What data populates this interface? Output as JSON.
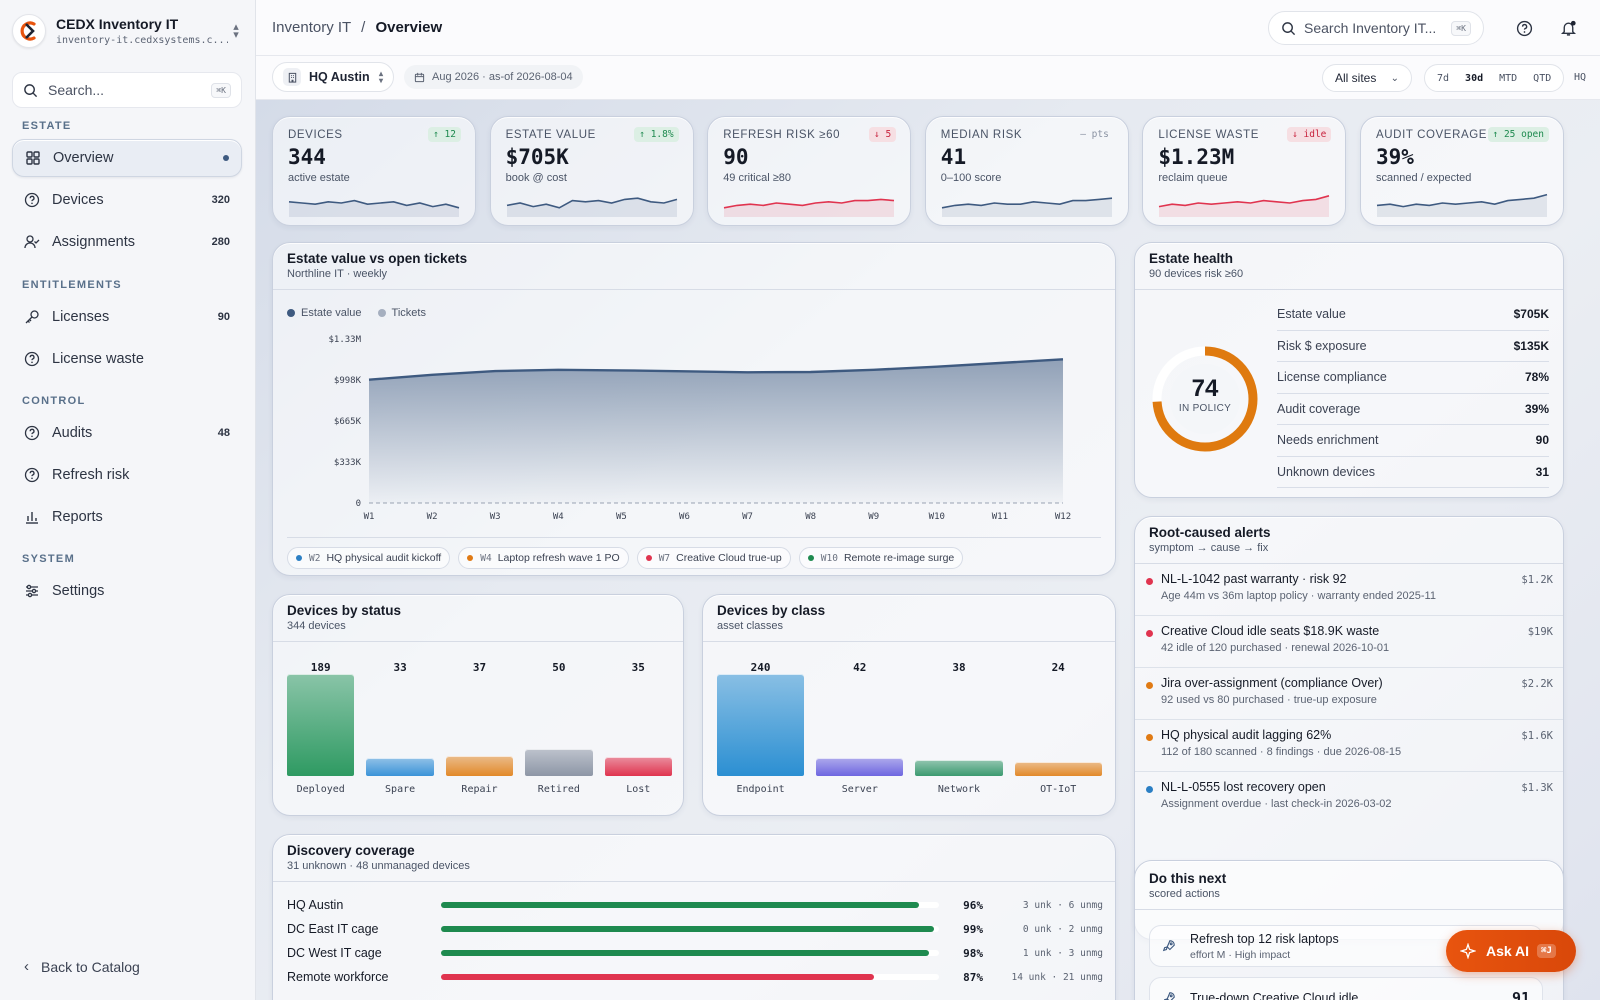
{
  "app": {
    "name": "CEDX Inventory IT",
    "host": "inventory-it.cedxsystems.c..."
  },
  "sidebar": {
    "search_placeholder": "Search...",
    "search_kbd": "⌘K",
    "sections": {
      "estate": "ESTATE",
      "entitlements": "ENTITLEMENTS",
      "control": "CONTROL",
      "system": "SYSTEM"
    },
    "items": [
      {
        "label": "Overview",
        "count": ""
      },
      {
        "label": "Devices",
        "count": "320"
      },
      {
        "label": "Assignments",
        "count": "280"
      },
      {
        "label": "Licenses",
        "count": "90"
      },
      {
        "label": "License waste",
        "count": ""
      },
      {
        "label": "Audits",
        "count": "48"
      },
      {
        "label": "Refresh risk",
        "count": ""
      },
      {
        "label": "Reports",
        "count": ""
      },
      {
        "label": "Settings",
        "count": ""
      }
    ],
    "back": "Back to Catalog"
  },
  "topbar": {
    "crumb_root": "Inventory IT",
    "crumb_sep": "/",
    "crumb_current": "Overview",
    "search_placeholder": "Search Inventory IT...",
    "search_kbd": "⌘K"
  },
  "filters": {
    "site": "HQ Austin",
    "date": "Aug 2026 · as-of 2026-08-04",
    "all_sites": "All sites",
    "ranges": [
      "7d",
      "30d",
      "MTD",
      "QTD"
    ],
    "active_range": "30d",
    "hq": "HQ"
  },
  "kpis": [
    {
      "label": "DEVICES",
      "value": "344",
      "sub": "active estate",
      "badge": "↑ 12",
      "trend": "up",
      "color": "#3e5a80"
    },
    {
      "label": "ESTATE VALUE",
      "value": "$705K",
      "sub": "book @ cost",
      "badge": "↑ 1.8%",
      "trend": "up",
      "color": "#3e5a80"
    },
    {
      "label": "REFRESH RISK ≥60",
      "value": "90",
      "sub": "49 critical ≥80",
      "badge": "↓ 5",
      "trend": "down",
      "color": "#e0344f"
    },
    {
      "label": "MEDIAN RISK",
      "value": "41",
      "sub": "0–100 score",
      "badge": "— pts",
      "trend": "flat",
      "color": "#3e5a80"
    },
    {
      "label": "LICENSE WASTE",
      "value": "$1.23M",
      "sub": "reclaim queue",
      "badge": "↓ idle",
      "trend": "down",
      "color": "#e0344f"
    },
    {
      "label": "AUDIT COVERAGE",
      "value": "39%",
      "sub": "scanned / expected",
      "badge": "↑ 25 open",
      "trend": "up",
      "color": "#3e5a80"
    }
  ],
  "estate_chart": {
    "title": "Estate value vs open tickets",
    "subtitle": "Northline IT · weekly",
    "legend": [
      {
        "name": "Estate value",
        "color": "#3e5a80"
      },
      {
        "name": "Tickets",
        "color": "#a5afbf"
      }
    ],
    "annotations": [
      {
        "week": "W2",
        "text": "HQ physical audit kickoff",
        "color": "#2b7fc4"
      },
      {
        "week": "W4",
        "text": "Laptop refresh wave 1 PO",
        "color": "#e07a14"
      },
      {
        "week": "W7",
        "text": "Creative Cloud true-up",
        "color": "#e0344f"
      },
      {
        "week": "W10",
        "text": "Remote re-image surge",
        "color": "#1e8a4f"
      }
    ]
  },
  "chart_data": [
    {
      "type": "area",
      "title": "Estate value vs open tickets",
      "subtitle": "Northline IT · weekly",
      "x": [
        "W1",
        "W2",
        "W3",
        "W4",
        "W5",
        "W6",
        "W7",
        "W8",
        "W9",
        "W10",
        "W11",
        "W12"
      ],
      "series": [
        {
          "name": "Estate value",
          "values": [
            1000,
            1040,
            1070,
            1080,
            1075,
            1068,
            1060,
            1062,
            1080,
            1105,
            1135,
            1165
          ]
        }
      ],
      "y_ticks": [
        "0",
        "$333K",
        "$665K",
        "$998K",
        "$1.33M"
      ],
      "ylim": [
        0,
        1330
      ]
    },
    {
      "type": "bar",
      "title": "Devices by status",
      "subtitle": "344 devices",
      "categories": [
        "Deployed",
        "Spare",
        "Repair",
        "Retired",
        "Lost"
      ],
      "values": [
        189,
        33,
        37,
        50,
        35
      ],
      "colors": [
        "#2e9a62",
        "#3b93d8",
        "#e2892a",
        "#8d96a6",
        "#e0344f"
      ]
    },
    {
      "type": "bar",
      "title": "Devices by class",
      "subtitle": "asset classes",
      "categories": [
        "Endpoint",
        "Server",
        "Network",
        "OT-IoT"
      ],
      "values": [
        240,
        42,
        38,
        24
      ],
      "colors": [
        "#2b8fd2",
        "#6e66e0",
        "#3c9a70",
        "#e2892a"
      ]
    }
  ],
  "health": {
    "title": "Estate health",
    "subtitle": "90 devices risk ≥60",
    "score": "74",
    "score_label": "IN POLICY",
    "score_fraction": 0.74,
    "rows": [
      {
        "label": "Estate value",
        "value": "$705K"
      },
      {
        "label": "Risk $ exposure",
        "value": "$135K"
      },
      {
        "label": "License compliance",
        "value": "78%"
      },
      {
        "label": "Audit coverage",
        "value": "39%"
      },
      {
        "label": "Needs enrichment",
        "value": "90"
      },
      {
        "label": "Unknown devices",
        "value": "31"
      }
    ]
  },
  "alerts": {
    "title": "Root-caused alerts",
    "subtitle": "symptom → cause → fix",
    "items": [
      {
        "title": "NL-L-1042 past warranty · risk 92",
        "sub": "Age 44m vs 36m laptop policy · warranty ended 2025-11",
        "value": "$1.2K",
        "color": "#e0344f"
      },
      {
        "title": "Creative Cloud idle seats $18.9K waste",
        "sub": "42 idle of 120 purchased · renewal 2026-10-01",
        "value": "$19K",
        "color": "#e0344f"
      },
      {
        "title": "Jira over-assignment (compliance Over)",
        "sub": "92 used vs 80 purchased · true-up exposure",
        "value": "$2.2K",
        "color": "#e07a14"
      },
      {
        "title": "HQ physical audit lagging 62%",
        "sub": "112 of 180 scanned · 8 findings · due 2026-08-15",
        "value": "$1.6K",
        "color": "#e07a14"
      },
      {
        "title": "NL-L-0555 lost recovery open",
        "sub": "Assignment overdue · last check-in 2026-03-02",
        "value": "$1.3K",
        "color": "#2b7fc4"
      }
    ]
  },
  "status_card": {
    "title": "Devices by status",
    "subtitle": "344 devices"
  },
  "class_card": {
    "title": "Devices by class",
    "subtitle": "asset classes"
  },
  "coverage": {
    "title": "Discovery coverage",
    "subtitle": "31 unknown · 48 unmanaged devices",
    "rows": [
      {
        "name": "HQ Austin",
        "pct": "96%",
        "fraction": 0.96,
        "detail": "3 unk · 6 unmg",
        "color": "#1e8a4f"
      },
      {
        "name": "DC East IT cage",
        "pct": "99%",
        "fraction": 0.99,
        "detail": "0 unk · 2 unmg",
        "color": "#1e8a4f"
      },
      {
        "name": "DC West IT cage",
        "pct": "98%",
        "fraction": 0.98,
        "detail": "1 unk · 3 unmg",
        "color": "#1e8a4f"
      },
      {
        "name": "Remote workforce",
        "pct": "87%",
        "fraction": 0.87,
        "detail": "14 unk · 21 unmg",
        "color": "#e0344f"
      }
    ]
  },
  "next": {
    "title": "Do this next",
    "subtitle": "scored actions",
    "items": [
      {
        "title": "Refresh top 12 risk laptops",
        "sub": "effort M · High impact",
        "score": ""
      },
      {
        "title": "True-down Creative Cloud idle",
        "sub": "",
        "score": "91"
      }
    ]
  },
  "ask": {
    "label": "Ask AI",
    "kbd": "⌘J"
  }
}
